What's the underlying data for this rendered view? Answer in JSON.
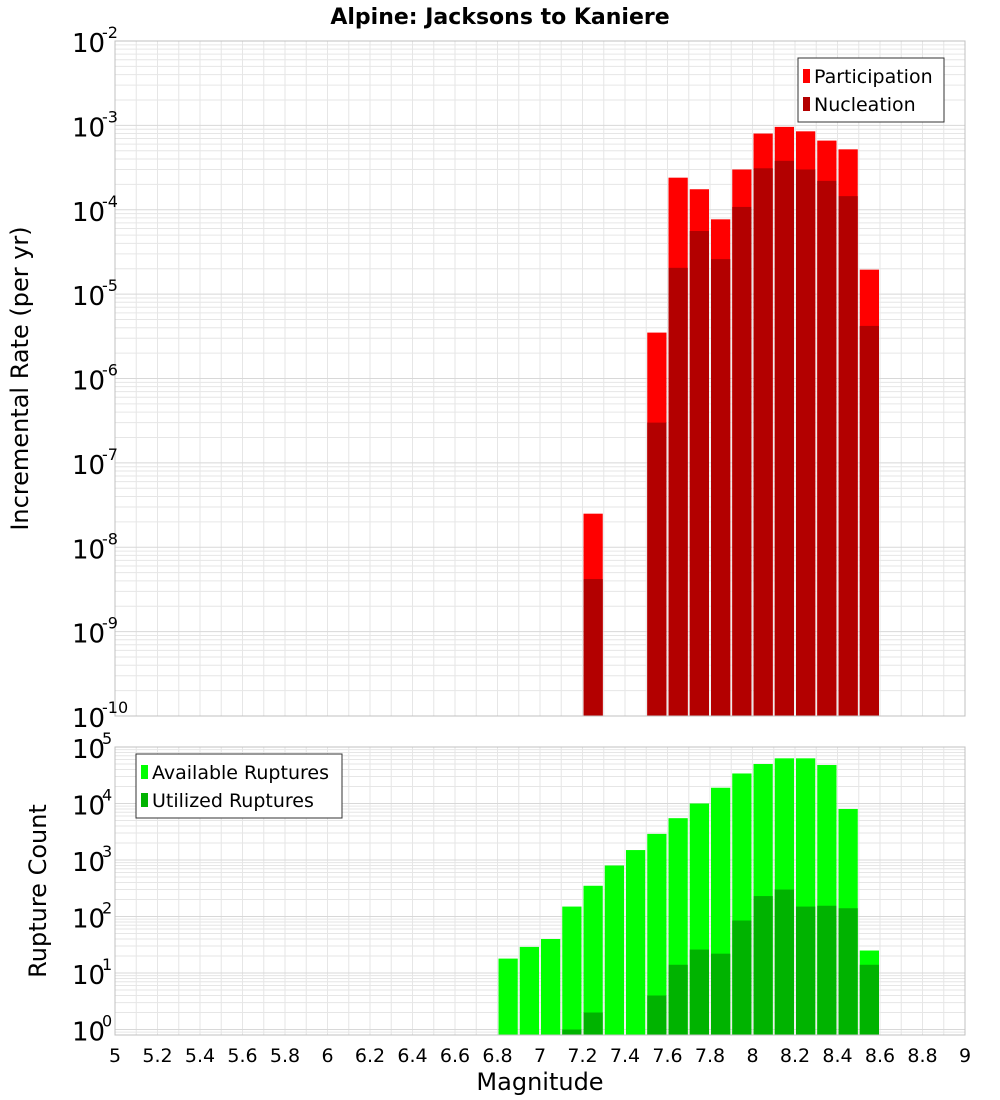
{
  "title": "Alpine: Jacksons to Kaniere",
  "colors": {
    "participation": "#ff0000",
    "nucleation": "#b30000",
    "available": "#00ff00",
    "utilized": "#00b300",
    "grid": "#e6e6e6",
    "frame": "#c0c0c0"
  },
  "chart_data": [
    {
      "type": "bar",
      "title": "Alpine: Jacksons to Kaniere",
      "ylabel": "Incremental Rate (per yr)",
      "xlabel": "",
      "yscale": "log",
      "ylim": [
        1e-10,
        0.01
      ],
      "xlim": [
        5,
        9
      ],
      "grid": true,
      "legend": "top-right",
      "bin_width": 0.1,
      "series": [
        {
          "name": "Participation",
          "color": "#ff0000",
          "points": [
            {
              "x": 7.25,
              "y": 2.5e-08
            },
            {
              "x": 7.55,
              "y": 3.5e-06
            },
            {
              "x": 7.65,
              "y": 0.00024
            },
            {
              "x": 7.75,
              "y": 0.000175
            },
            {
              "x": 7.85,
              "y": 7.7e-05
            },
            {
              "x": 7.95,
              "y": 0.0003
            },
            {
              "x": 8.05,
              "y": 0.0008
            },
            {
              "x": 8.15,
              "y": 0.00096
            },
            {
              "x": 8.25,
              "y": 0.00085
            },
            {
              "x": 8.35,
              "y": 0.00066
            },
            {
              "x": 8.45,
              "y": 0.00052
            },
            {
              "x": 8.55,
              "y": 1.95e-05
            }
          ]
        },
        {
          "name": "Nucleation",
          "color": "#b30000",
          "points": [
            {
              "x": 7.25,
              "y": 4.2e-09
            },
            {
              "x": 7.55,
              "y": 3e-07
            },
            {
              "x": 7.65,
              "y": 2.05e-05
            },
            {
              "x": 7.75,
              "y": 5.6e-05
            },
            {
              "x": 7.85,
              "y": 2.6e-05
            },
            {
              "x": 7.95,
              "y": 0.000108
            },
            {
              "x": 8.05,
              "y": 0.00031
            },
            {
              "x": 8.15,
              "y": 0.00038
            },
            {
              "x": 8.25,
              "y": 0.0003
            },
            {
              "x": 8.35,
              "y": 0.00022
            },
            {
              "x": 8.45,
              "y": 0.000145
            },
            {
              "x": 8.55,
              "y": 4.2e-06
            }
          ]
        }
      ]
    },
    {
      "type": "bar",
      "title": "",
      "ylabel": "Rupture Count",
      "xlabel": "Magnitude",
      "yscale": "log",
      "ylim": [
        0.8,
        100000.0
      ],
      "xlim": [
        5,
        9
      ],
      "grid": true,
      "legend": "top-left",
      "bin_width": 0.1,
      "xticks": [
        "5",
        "5.2",
        "5.4",
        "5.6",
        "5.8",
        "6",
        "6.2",
        "6.4",
        "6.6",
        "6.8",
        "7",
        "7.2",
        "7.4",
        "7.6",
        "7.8",
        "8",
        "8.2",
        "8.4",
        "8.6",
        "8.8",
        "9"
      ],
      "series": [
        {
          "name": "Available Ruptures",
          "color": "#00ff00",
          "points": [
            {
              "x": 6.85,
              "y": 18
            },
            {
              "x": 6.95,
              "y": 29
            },
            {
              "x": 7.05,
              "y": 40
            },
            {
              "x": 7.15,
              "y": 150
            },
            {
              "x": 7.25,
              "y": 350
            },
            {
              "x": 7.35,
              "y": 800
            },
            {
              "x": 7.45,
              "y": 1500
            },
            {
              "x": 7.55,
              "y": 2900
            },
            {
              "x": 7.65,
              "y": 5500
            },
            {
              "x": 7.75,
              "y": 10000
            },
            {
              "x": 7.85,
              "y": 19000
            },
            {
              "x": 7.95,
              "y": 34000
            },
            {
              "x": 8.05,
              "y": 50000
            },
            {
              "x": 8.15,
              "y": 63000
            },
            {
              "x": 8.25,
              "y": 63000
            },
            {
              "x": 8.35,
              "y": 48000
            },
            {
              "x": 8.45,
              "y": 8000
            },
            {
              "x": 8.55,
              "y": 25
            }
          ]
        },
        {
          "name": "Utilized Ruptures",
          "color": "#00b300",
          "points": [
            {
              "x": 7.15,
              "y": 1
            },
            {
              "x": 7.25,
              "y": 2
            },
            {
              "x": 7.55,
              "y": 4
            },
            {
              "x": 7.65,
              "y": 14
            },
            {
              "x": 7.75,
              "y": 26
            },
            {
              "x": 7.85,
              "y": 22
            },
            {
              "x": 7.95,
              "y": 85
            },
            {
              "x": 8.05,
              "y": 230
            },
            {
              "x": 8.15,
              "y": 300
            },
            {
              "x": 8.25,
              "y": 150
            },
            {
              "x": 8.35,
              "y": 155
            },
            {
              "x": 8.45,
              "y": 140
            },
            {
              "x": 8.55,
              "y": 14
            }
          ]
        }
      ]
    }
  ],
  "top_y_ticks": [
    -10,
    -9,
    -8,
    -7,
    -6,
    -5,
    -4,
    -3,
    -2
  ],
  "bottom_y_ticks": [
    0,
    1,
    2,
    3,
    4,
    5
  ]
}
